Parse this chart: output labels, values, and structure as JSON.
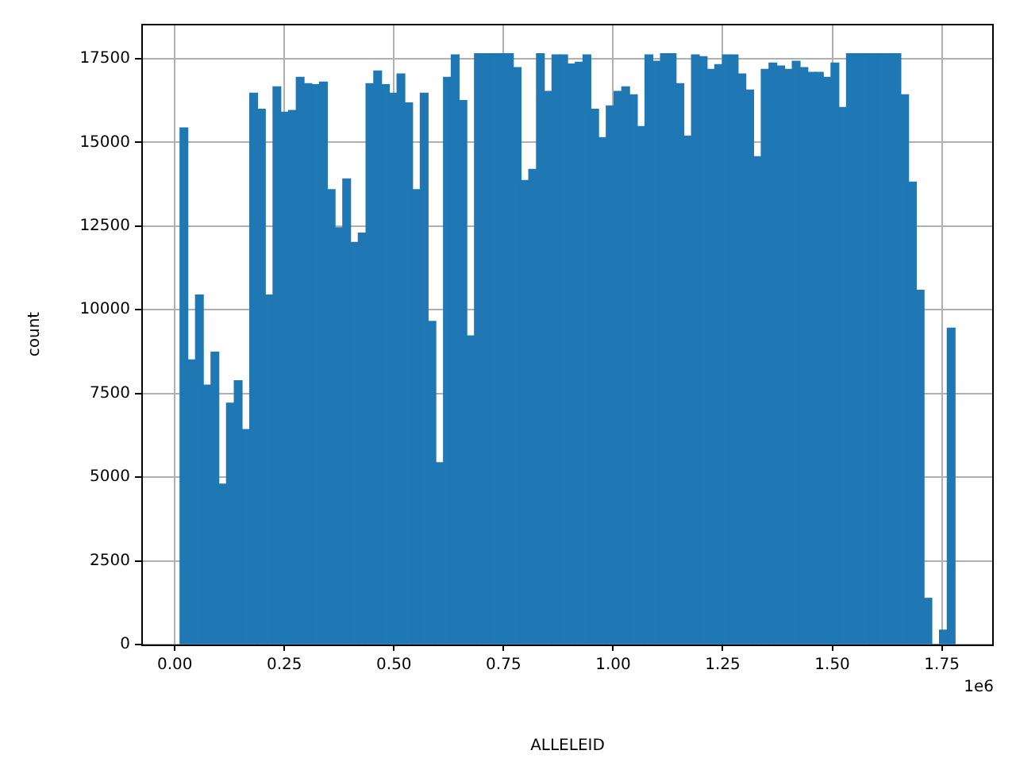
{
  "chart_data": {
    "type": "histogram",
    "xlabel": "ALLELEID",
    "ylabel": "count",
    "color": "#1f77b4",
    "grid": true,
    "annotations": [
      "1e6"
    ],
    "bins": [
      0.012,
      0.02968,
      0.04736,
      0.06504,
      0.08272,
      0.1004,
      0.11808,
      0.13576,
      0.15344,
      0.17112,
      0.1888,
      0.20648,
      0.22416,
      0.24184,
      0.25952,
      0.2772,
      0.29488,
      0.31256,
      0.33024,
      0.34792,
      0.3656,
      0.38328,
      0.40096,
      0.41864,
      0.43632,
      0.454,
      0.47168,
      0.48936,
      0.50704,
      0.52472,
      0.5424,
      0.56008,
      0.57776,
      0.59544,
      0.61312,
      0.6308,
      0.64848,
      0.66616,
      0.68384,
      0.70152,
      0.7192,
      0.73688,
      0.75456,
      0.77224,
      0.78992,
      0.8076,
      0.82528,
      0.84296,
      0.86064,
      0.87832,
      0.896,
      0.91368,
      0.93136,
      0.94904,
      0.96672,
      0.9844,
      1.00208,
      1.01976,
      1.03744,
      1.05512,
      1.0728,
      1.09048,
      1.10816,
      1.12584,
      1.14352,
      1.1612,
      1.17888,
      1.19656,
      1.21424,
      1.23192,
      1.2496,
      1.26728,
      1.28496,
      1.30264,
      1.32032,
      1.338,
      1.35568,
      1.37336,
      1.39104,
      1.40872,
      1.4264,
      1.44408,
      1.46176,
      1.47944,
      1.49712,
      1.5148,
      1.53248,
      1.55016,
      1.56784,
      1.58552,
      1.6032,
      1.62088,
      1.63856,
      1.65624,
      1.67392,
      1.6916,
      1.70928,
      1.72696,
      1.74464,
      1.76232,
      1.78
    ],
    "values": [
      15430,
      8500,
      10440,
      7750,
      8730,
      4790,
      7210,
      7880,
      6420,
      16470,
      15990,
      10440,
      16660,
      15900,
      15950,
      16940,
      16750,
      16720,
      16800,
      13590,
      12450,
      13910,
      12010,
      12290,
      16750,
      17130,
      16720,
      16470,
      17040,
      16180,
      13590,
      16470,
      9650,
      5430,
      16940,
      17610,
      16250,
      9220,
      17650,
      17650,
      17650,
      17650,
      17650,
      17230,
      13860,
      14190,
      17650,
      16520,
      17610,
      17610,
      17340,
      17390,
      17610,
      15990,
      15140,
      16090,
      16520,
      16660,
      16420,
      15470,
      17610,
      17420,
      17650,
      17650,
      16750,
      15190,
      17610,
      17560,
      17180,
      17320,
      17610,
      17610,
      17040,
      16560,
      14570,
      17180,
      17370,
      17280,
      17180,
      17420,
      17230,
      17090,
      17090,
      16940,
      17370,
      16040,
      17650,
      17650,
      17650,
      17650,
      17650,
      17650,
      17650,
      16420,
      13810,
      10580,
      1380,
      0,
      430,
      9450
    ],
    "xlim": [
      -0.0764,
      1.8684
    ],
    "xticks": [
      {
        "value": 0,
        "label": "0.00"
      },
      {
        "value": 0.25,
        "label": "0.25"
      },
      {
        "value": 0.5,
        "label": "0.50"
      },
      {
        "value": 0.75,
        "label": "0.75"
      },
      {
        "value": 1,
        "label": "1.00"
      },
      {
        "value": 1.25,
        "label": "1.25"
      },
      {
        "value": 1.5,
        "label": "1.50"
      },
      {
        "value": 1.75,
        "label": "1.75"
      }
    ],
    "ylim": [
      0,
      18540
    ],
    "yticks": [
      0,
      2500,
      5000,
      7500,
      10000,
      12500,
      15000,
      17500
    ]
  }
}
